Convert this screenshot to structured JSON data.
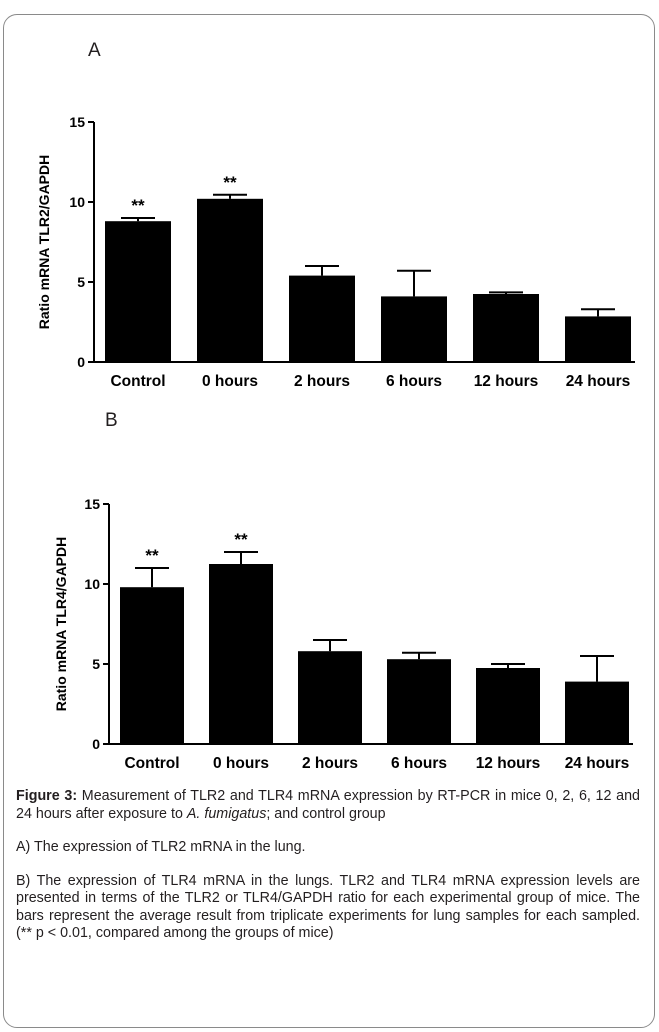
{
  "panels": {
    "a_label": "A",
    "b_label": "B"
  },
  "chart_data": [
    {
      "type": "bar",
      "ylabel": "Ratio mRNA TLR2/GAPDH",
      "xlabel": "",
      "ylim": [
        0,
        15
      ],
      "yticks": [
        0,
        5,
        10,
        15
      ],
      "categories": [
        "Control",
        "0 hours",
        "2 hours",
        "6 hours",
        "12 hours",
        "24 hours"
      ],
      "values": [
        8.8,
        10.2,
        5.4,
        4.1,
        4.25,
        2.85
      ],
      "error": [
        0.2,
        0.25,
        0.6,
        1.6,
        0.1,
        0.45
      ],
      "annotations": [
        "**",
        "**",
        "",
        "",
        "",
        ""
      ],
      "bar_color": "#000000"
    },
    {
      "type": "bar",
      "ylabel": "Ratio mRNA TLR4/GAPDH",
      "xlabel": "",
      "ylim": [
        0,
        15
      ],
      "yticks": [
        0,
        5,
        10,
        15
      ],
      "categories": [
        "Control",
        "0 hours",
        "2 hours",
        "6 hours",
        "12 hours",
        "24 hours"
      ],
      "values": [
        9.8,
        11.25,
        5.8,
        5.3,
        4.75,
        3.9
      ],
      "error": [
        1.2,
        0.75,
        0.7,
        0.4,
        0.25,
        1.6
      ],
      "annotations": [
        "**",
        "**",
        "",
        "",
        "",
        ""
      ],
      "bar_color": "#000000"
    }
  ],
  "caption": {
    "figure_label": "Figure 3:",
    "figure_text_1": " Measurement of TLR2 and TLR4 mRNA expression by RT-PCR in mice 0, 2, 6, 12 and 24 hours after exposure to ",
    "figure_text_species": "A. fumigatus",
    "figure_text_2": "; and control group",
    "para_a": "A) The expression of TLR2 mRNA in the lung.",
    "para_b": "B) The expression of TLR4 mRNA in the lungs. TLR2 and TLR4 mRNA expression levels are presented in terms of the TLR2 or TLR4/GAPDH ratio for each experimental group of mice. The bars represent the average result from triplicate experiments for lung samples for each sampled. (** p < 0.01, compared among the groups of mice)"
  }
}
